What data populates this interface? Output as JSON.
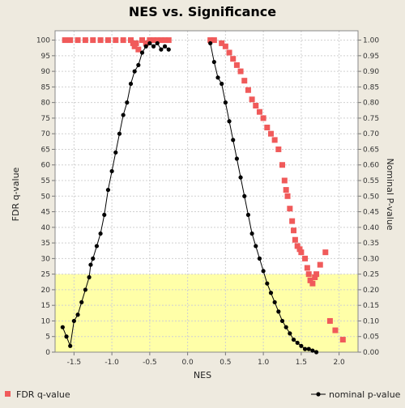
{
  "chart_data": {
    "type": "scatter",
    "title": "NES vs. Significance",
    "xlabel": "NES",
    "ylabel_left": "FDR q-value",
    "ylabel_right": "Nominal P-value",
    "xlim": [
      -1.75,
      2.25
    ],
    "ylim_left": [
      0,
      103
    ],
    "ylim_right": [
      0,
      1.03
    ],
    "x_ticks": [
      -1.5,
      -1.0,
      -0.5,
      0.0,
      0.5,
      1.0,
      1.5,
      2.0
    ],
    "x_tick_labels": [
      "-1.5",
      "-1.0",
      "-0.5",
      "0.0",
      "0.5",
      "1.0",
      "1.5",
      "2.0"
    ],
    "y_left_ticks": [
      0,
      5,
      10,
      15,
      20,
      25,
      30,
      35,
      40,
      45,
      50,
      55,
      60,
      65,
      70,
      75,
      80,
      85,
      90,
      95,
      100
    ],
    "y_left_tick_labels": [
      "0",
      "5",
      "10",
      "15",
      "20",
      "25",
      "30",
      "35",
      "40",
      "45",
      "50",
      "55",
      "60",
      "65",
      "70",
      "75",
      "80",
      "85",
      "90",
      "95",
      "100"
    ],
    "y_right_ticks": [
      0,
      0.05,
      0.1,
      0.15,
      0.2,
      0.25,
      0.3,
      0.35,
      0.4,
      0.45,
      0.5,
      0.55,
      0.6,
      0.65,
      0.7,
      0.75,
      0.8,
      0.85,
      0.9,
      0.95,
      1.0
    ],
    "y_right_tick_labels": [
      "0.00",
      "0.05",
      "0.10",
      "0.15",
      "0.20",
      "0.25",
      "0.30",
      "0.35",
      "0.40",
      "0.45",
      "0.50",
      "0.55",
      "0.60",
      "0.65",
      "0.70",
      "0.75",
      "0.80",
      "0.85",
      "0.90",
      "0.95",
      "1.00"
    ],
    "grid": true,
    "highlight_band": {
      "axis": "left",
      "from": 0,
      "to": 25,
      "color": "#ffffa8"
    },
    "legend": [
      {
        "name": "FDR q-value",
        "marker": "square",
        "color": "#f05a5a"
      },
      {
        "name": "nominal p-value",
        "marker": "line-circle",
        "color": "#000000"
      }
    ],
    "series": [
      {
        "name": "FDR q-value",
        "axis": "left",
        "color": "#f05a5a",
        "marker": "square",
        "x": [
          -1.62,
          -1.55,
          -1.45,
          -1.35,
          -1.25,
          -1.15,
          -1.05,
          -0.95,
          -0.85,
          -0.75,
          -0.72,
          -0.7,
          -0.68,
          -0.65,
          -0.6,
          -0.55,
          -0.5,
          -0.45,
          -0.4,
          -0.35,
          -0.3,
          -0.25,
          0.3,
          0.35,
          0.45,
          0.5,
          0.55,
          0.6,
          0.65,
          0.7,
          0.75,
          0.8,
          0.85,
          0.9,
          0.95,
          1.0,
          1.05,
          1.1,
          1.15,
          1.2,
          1.25,
          1.28,
          1.3,
          1.32,
          1.35,
          1.38,
          1.4,
          1.42,
          1.45,
          1.48,
          1.5,
          1.55,
          1.58,
          1.6,
          1.62,
          1.65,
          1.68,
          1.7,
          1.75,
          1.82,
          1.88,
          1.95,
          2.05
        ],
        "y": [
          100,
          100,
          100,
          100,
          100,
          100,
          100,
          100,
          100,
          100,
          99,
          98,
          99,
          97,
          100,
          99,
          100,
          100,
          100,
          100,
          100,
          100,
          100,
          100,
          99,
          98,
          96,
          94,
          92,
          90,
          87,
          84,
          81,
          79,
          77,
          75,
          72,
          70,
          68,
          65,
          60,
          55,
          52,
          50,
          46,
          42,
          39,
          36,
          34,
          33,
          32,
          30,
          27,
          25,
          23,
          22,
          24,
          25,
          28,
          32,
          10,
          7,
          4
        ]
      },
      {
        "name": "nominal p-value",
        "axis": "right",
        "color": "#000000",
        "marker": "line-circle",
        "x": [
          -1.65,
          -1.6,
          -1.55,
          -1.5,
          -1.45,
          -1.4,
          -1.35,
          -1.3,
          -1.28,
          -1.25,
          -1.2,
          -1.15,
          -1.1,
          -1.05,
          -1.0,
          -0.95,
          -0.9,
          -0.85,
          -0.8,
          -0.75,
          -0.7,
          -0.65,
          -0.6,
          -0.55,
          -0.5,
          -0.45,
          -0.4,
          -0.35,
          -0.3,
          -0.25,
          0.3,
          0.35,
          0.4,
          0.45,
          0.5,
          0.55,
          0.6,
          0.65,
          0.7,
          0.75,
          0.8,
          0.85,
          0.9,
          0.95,
          1.0,
          1.05,
          1.1,
          1.15,
          1.2,
          1.25,
          1.3,
          1.35,
          1.4,
          1.45,
          1.5,
          1.55,
          1.6,
          1.65,
          1.7
        ],
        "y": [
          0.08,
          0.05,
          0.02,
          0.1,
          0.12,
          0.16,
          0.2,
          0.24,
          0.28,
          0.3,
          0.34,
          0.38,
          0.44,
          0.52,
          0.58,
          0.64,
          0.7,
          0.76,
          0.8,
          0.86,
          0.9,
          0.92,
          0.96,
          0.98,
          0.99,
          0.98,
          0.99,
          0.97,
          0.98,
          0.97,
          0.99,
          0.93,
          0.88,
          0.86,
          0.8,
          0.74,
          0.68,
          0.62,
          0.56,
          0.5,
          0.44,
          0.38,
          0.34,
          0.3,
          0.26,
          0.22,
          0.19,
          0.16,
          0.13,
          0.1,
          0.08,
          0.06,
          0.04,
          0.03,
          0.02,
          0.01,
          0.01,
          0.005,
          0.0
        ]
      }
    ]
  }
}
